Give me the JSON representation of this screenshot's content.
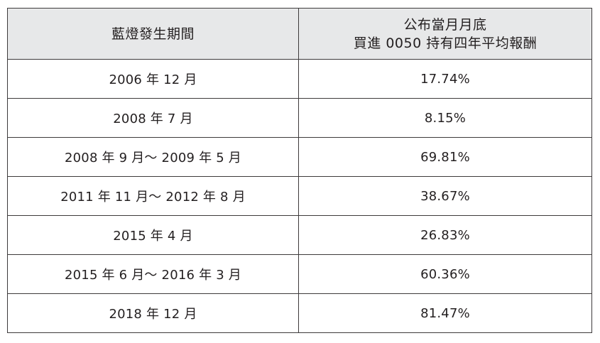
{
  "table": {
    "headers": {
      "period": "藍燈發生期間",
      "return_line1": "公布當月月底",
      "return_line2": "買進 0050 持有四年平均報酬"
    },
    "rows": [
      {
        "period": "2006 年 12 月",
        "return": "17.74%"
      },
      {
        "period": "2008 年 7 月",
        "return": "8.15%"
      },
      {
        "period": "2008 年 9 月～ 2009 年 5 月",
        "return": "69.81%"
      },
      {
        "period": "2011 年 11 月～ 2012 年 8 月",
        "return": "38.67%"
      },
      {
        "period": "2015 年 4 月",
        "return": "26.83%"
      },
      {
        "period": "2015 年 6 月～ 2016 年 3 月",
        "return": "60.36%"
      },
      {
        "period": "2018 年 12 月",
        "return": "81.47%"
      }
    ]
  }
}
